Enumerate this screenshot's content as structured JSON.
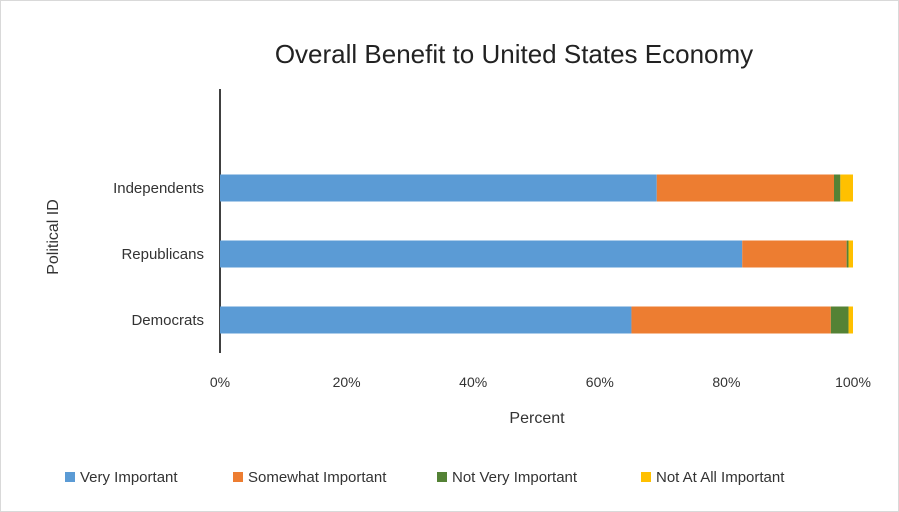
{
  "chart_data": {
    "type": "bar",
    "orientation": "horizontal",
    "stacked": true,
    "title": "Overall Benefit to United States Economy",
    "xlabel": "Percent",
    "ylabel": "Political ID",
    "xlim": [
      0,
      100
    ],
    "x_ticks": [
      "0%",
      "20%",
      "40%",
      "60%",
      "80%",
      "100%"
    ],
    "categories": [
      "Independents",
      "Republicans",
      "Democrats"
    ],
    "series": [
      {
        "name": "Very Important",
        "color": "#5b9bd5",
        "values": [
          69,
          82.5,
          65
        ]
      },
      {
        "name": "Somewhat Important",
        "color": "#ed7d31",
        "values": [
          28,
          16.5,
          31.5
        ]
      },
      {
        "name": "Not Very Important",
        "color": "#548235",
        "values": [
          1,
          0.3,
          2.8
        ]
      },
      {
        "name": "Not At All Important",
        "color": "#ffc000",
        "values": [
          2,
          0.7,
          0.7
        ]
      }
    ],
    "legend_position": "bottom",
    "grid": false
  }
}
